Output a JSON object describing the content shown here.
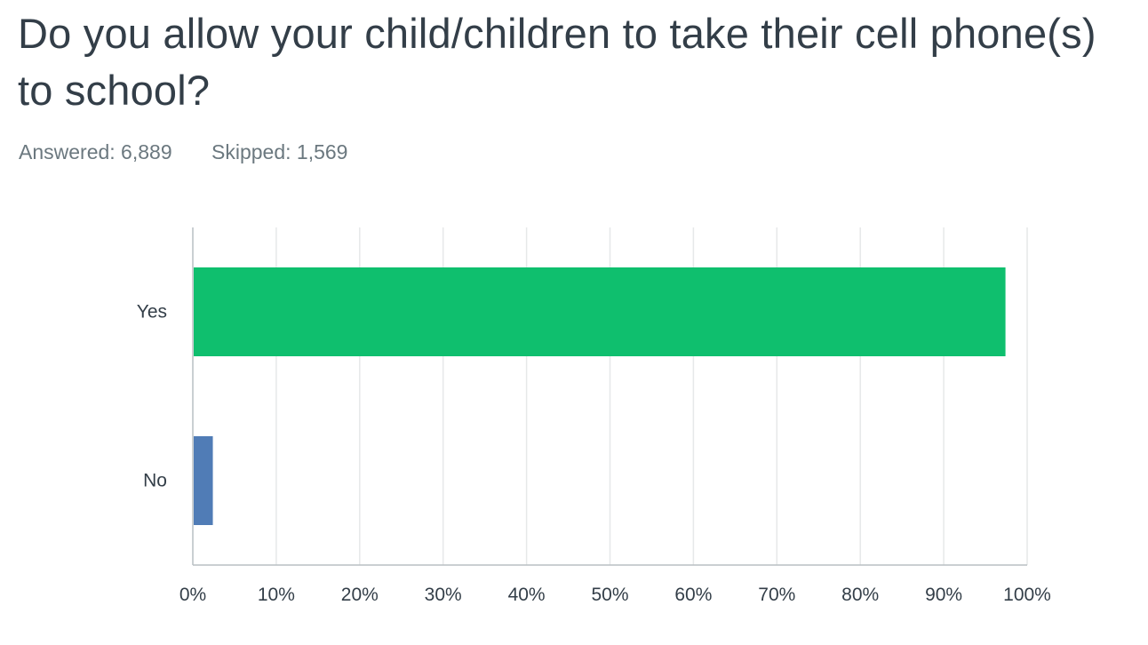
{
  "question": {
    "title": "Do you allow your child/children to take their cell phone(s) to school?"
  },
  "stats": {
    "answered": "Answered: 6,889",
    "skipped": "Skipped: 1,569"
  },
  "chart_data": {
    "type": "bar",
    "orientation": "horizontal",
    "categories": [
      "Yes",
      "No"
    ],
    "values": [
      97.4,
      2.4
    ],
    "value_unit": "percent",
    "colors": [
      "#0fbf6e",
      "#507cb6"
    ],
    "xlim": [
      0,
      100
    ],
    "xticks": [
      "0%",
      "10%",
      "20%",
      "30%",
      "40%",
      "50%",
      "60%",
      "70%",
      "80%",
      "90%",
      "100%"
    ],
    "grid": true
  }
}
